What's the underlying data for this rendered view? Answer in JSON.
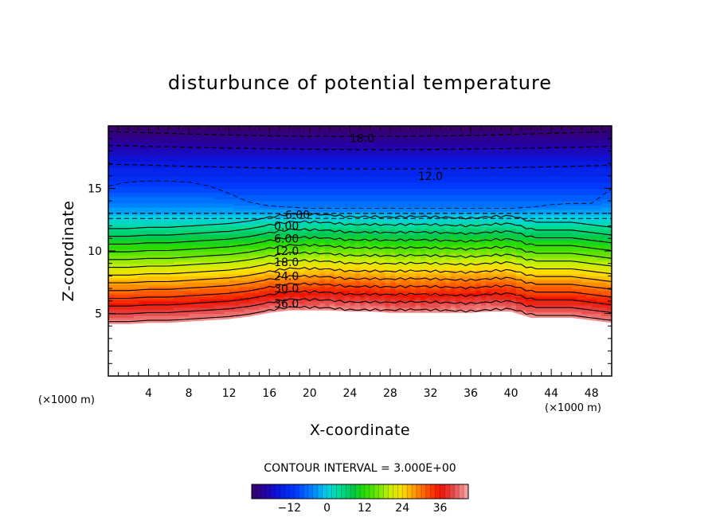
{
  "chart_data": {
    "type": "heatmap",
    "title": "disturbunce of potential temperature",
    "xlabel": "X-coordinate",
    "ylabel": "Z-coordinate",
    "x_unit_label": "(×1000 m)",
    "y_unit_label": "(×1000 m)",
    "xlim": [
      0,
      50
    ],
    "ylim": [
      0,
      20
    ],
    "x_ticks": [
      "4",
      "8",
      "12",
      "16",
      "20",
      "24",
      "28",
      "32",
      "36",
      "40",
      "44",
      "48"
    ],
    "y_ticks": [
      "5",
      "10",
      "15"
    ],
    "contour_interval_text": "CONTOUR INTERVAL = 3.000E+00",
    "colorbar": {
      "range": [
        -24,
        45
      ],
      "tick_labels": [
        "−12",
        "0",
        "12",
        "24",
        "36"
      ],
      "tick_values": [
        -12,
        0,
        12,
        24,
        36
      ]
    },
    "contour_labels": [
      {
        "text": "18.0",
        "x": 25.2,
        "y": 19.0
      },
      {
        "text": "12.0",
        "x": 32.0,
        "y": 16.0
      },
      {
        "text": "6.00",
        "x": 18.8,
        "y": 12.9
      },
      {
        "text": "0.00",
        "x": 17.7,
        "y": 12.0
      },
      {
        "text": "6.00",
        "x": 17.7,
        "y": 11.0
      },
      {
        "text": "12.0",
        "x": 17.7,
        "y": 10.0
      },
      {
        "text": "18.0",
        "x": 17.7,
        "y": 9.1
      },
      {
        "text": "24.0",
        "x": 17.7,
        "y": 8.0
      },
      {
        "text": "30.0",
        "x": 17.7,
        "y": 7.0
      },
      {
        "text": "36.0",
        "x": 17.7,
        "y": 5.8
      }
    ],
    "profiles": {
      "x": [
        0,
        2,
        4,
        6,
        8,
        10,
        12,
        14,
        16,
        18,
        20,
        22,
        24,
        26,
        28,
        30,
        32,
        34,
        36,
        38,
        40,
        42,
        44,
        46,
        48,
        50
      ],
      "terrain_top_z": [
        4.2,
        4.2,
        4.3,
        4.3,
        4.4,
        4.5,
        4.6,
        4.8,
        5.1,
        5.3,
        5.3,
        5.3,
        5.2,
        5.2,
        5.1,
        5.1,
        5.1,
        5.1,
        5.1,
        5.2,
        5.2,
        4.7,
        4.7,
        4.7,
        4.5,
        4.3
      ],
      "inversion_z": [
        13.0,
        13.0,
        13.0,
        13.0,
        13.0,
        13.0,
        13.0,
        13.0,
        13.0,
        13.0,
        13.0,
        13.0,
        13.0,
        13.0,
        13.0,
        13.0,
        13.0,
        13.0,
        13.0,
        13.0,
        13.0,
        13.0,
        13.0,
        13.0,
        13.0,
        13.0
      ],
      "mid_band_z": [
        5.4,
        5.4,
        5.5,
        5.5,
        5.6,
        5.7,
        5.8,
        6.0,
        6.3,
        6.5,
        6.5,
        6.5,
        6.4,
        6.4,
        6.3,
        6.3,
        6.3,
        6.3,
        6.3,
        6.4,
        6.4,
        5.9,
        5.9,
        5.9,
        5.7,
        5.5
      ],
      "upper_cool_dip_z": [
        15.2,
        15.5,
        15.6,
        15.6,
        15.5,
        15.2,
        14.6,
        13.9,
        13.6,
        13.5,
        13.4,
        13.4,
        13.4,
        13.4,
        13.4,
        13.4,
        13.4,
        13.4,
        13.4,
        13.4,
        13.4,
        13.5,
        13.7,
        13.8,
        13.8,
        15.0
      ]
    }
  }
}
